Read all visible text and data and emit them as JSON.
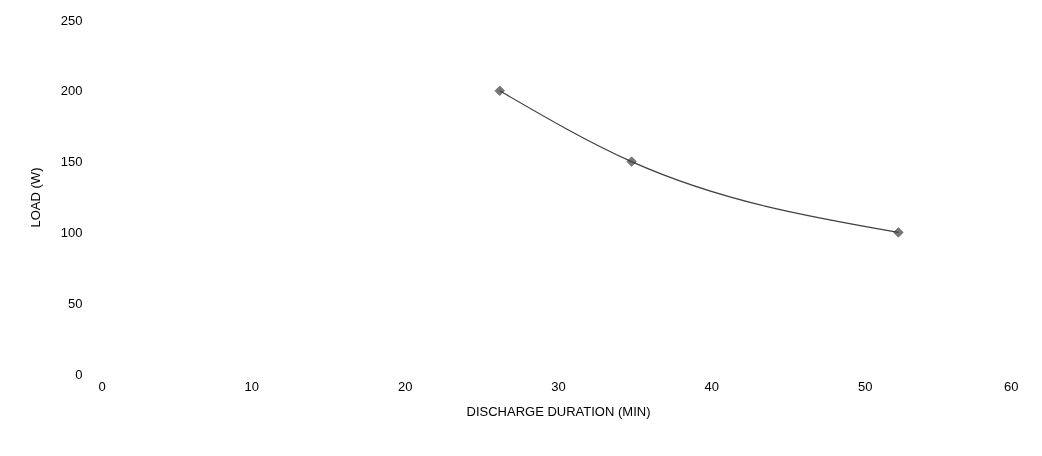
{
  "chart_data": {
    "type": "line",
    "xlabel": "DISCHARGE DURATION (MIN)",
    "ylabel": "LOAD (W)",
    "series": [
      {
        "color": "#404040",
        "x": [
          26.2,
          34.8,
          52.2
        ],
        "values": [
          200,
          150,
          100
        ]
      }
    ],
    "xlim": [
      0,
      60
    ],
    "ylim": [
      0,
      250
    ],
    "xticks": [
      0,
      10,
      20,
      30,
      40,
      50,
      60
    ],
    "yticks": [
      0,
      50,
      100,
      150,
      200,
      250
    ],
    "marker": "diamond"
  }
}
